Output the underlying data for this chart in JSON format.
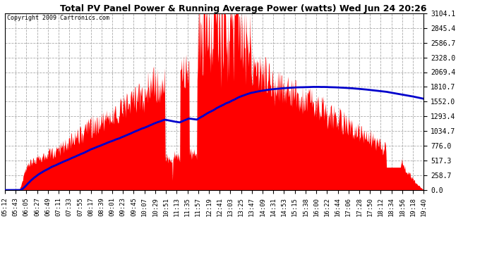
{
  "title": "Total PV Panel Power & Running Average Power (watts) Wed Jun 24 20:26",
  "copyright": "Copyright 2009 Cartronics.com",
  "ymax": 3104.1,
  "yticks": [
    0.0,
    258.7,
    517.3,
    776.0,
    1034.7,
    1293.4,
    1552.0,
    1810.7,
    2069.4,
    2328.0,
    2586.7,
    2845.4,
    3104.1
  ],
  "bg_color": "#ffffff",
  "grid_color": "#aaaaaa",
  "fill_color": "#ff0000",
  "line_color": "#0000cc",
  "title_color": "#000000",
  "xtick_labels": [
    "05:12",
    "05:43",
    "06:05",
    "06:27",
    "06:49",
    "07:11",
    "07:33",
    "07:55",
    "08:17",
    "08:39",
    "09:01",
    "09:23",
    "09:45",
    "10:07",
    "10:29",
    "10:51",
    "11:13",
    "11:35",
    "11:57",
    "12:19",
    "12:41",
    "13:03",
    "13:25",
    "13:47",
    "14:09",
    "14:31",
    "14:53",
    "15:15",
    "15:38",
    "16:00",
    "16:22",
    "16:44",
    "17:06",
    "17:28",
    "17:50",
    "18:12",
    "18:34",
    "18:56",
    "19:18",
    "19:40"
  ]
}
